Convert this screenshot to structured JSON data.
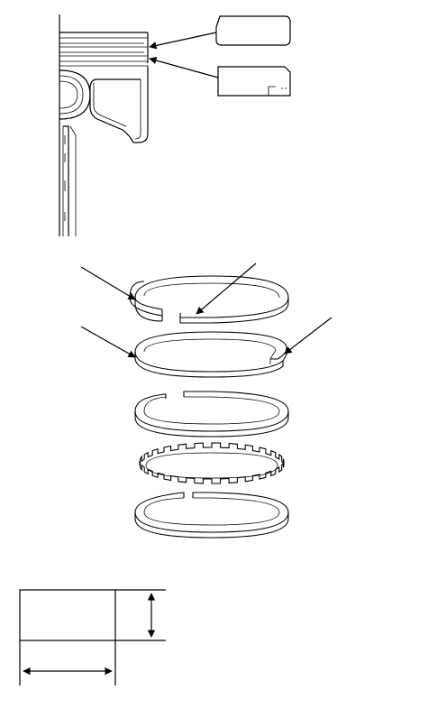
{
  "figure": {
    "sections": [
      {
        "id": "piston-cross-section",
        "callouts": 2
      },
      {
        "id": "piston-ring-set",
        "rings": [
          "top-compression-ring",
          "second-compression-ring",
          "oil-ring-upper-rail",
          "oil-ring-expander",
          "oil-ring-lower-rail"
        ],
        "pointers": 4
      },
      {
        "id": "ring-dimension-diagram",
        "dimensions": [
          "height",
          "width"
        ]
      }
    ],
    "colors": {
      "ink": "#000000",
      "paper": "#ffffff"
    }
  }
}
